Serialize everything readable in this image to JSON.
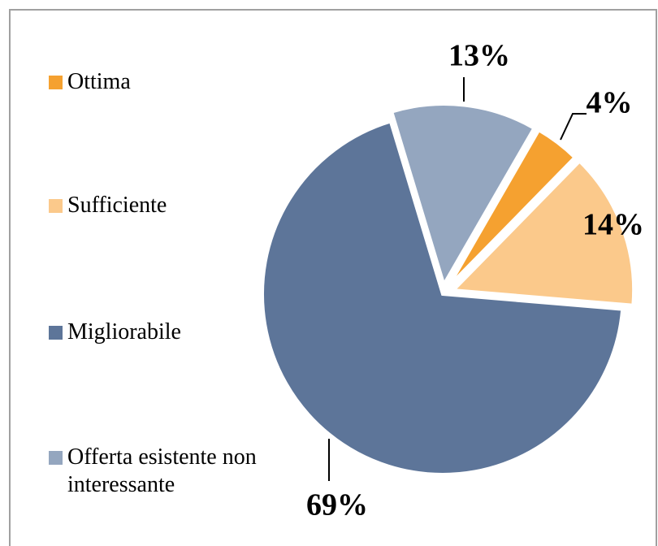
{
  "chart_data": {
    "type": "pie",
    "categories": [
      "Ottima",
      "Sufficiente",
      "Migliorabile",
      "Offerta esistente non interessante"
    ],
    "values": [
      4,
      14,
      69,
      13
    ],
    "value_labels": [
      "4%",
      "14%",
      "69%",
      "13%"
    ],
    "colors": [
      "#f5a130",
      "#fbc98b",
      "#5d7599",
      "#94a6bf"
    ],
    "legend": "left"
  }
}
